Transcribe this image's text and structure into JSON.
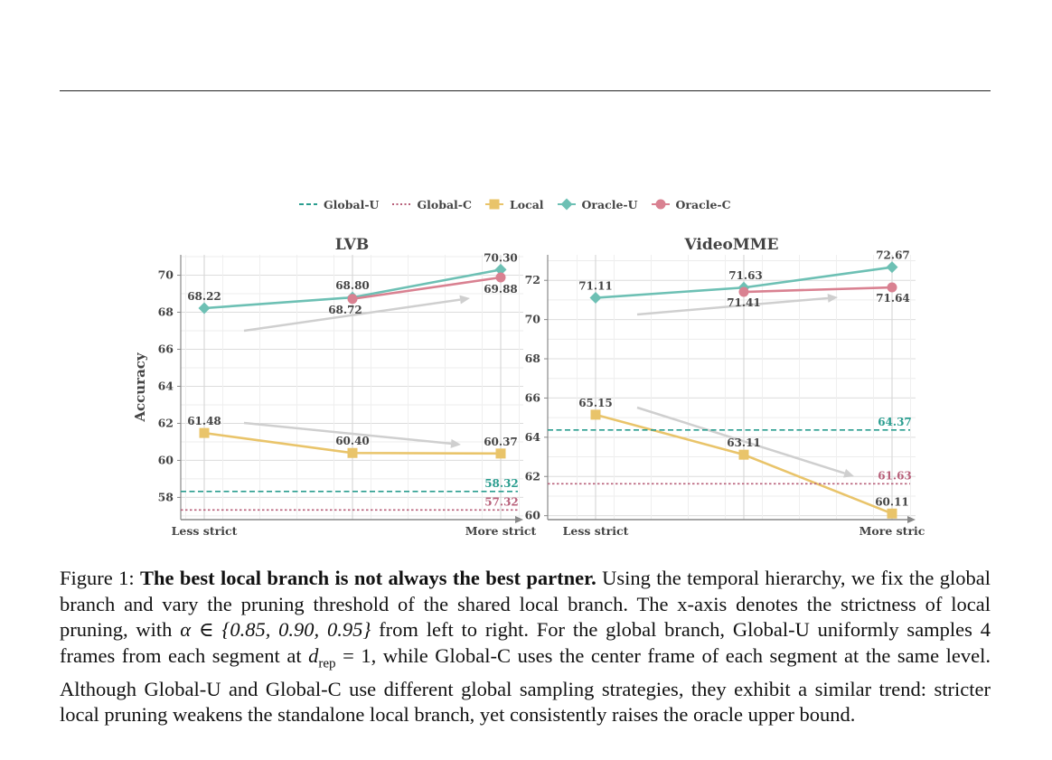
{
  "legend": [
    {
      "label": "Global-U",
      "color": "#2a9d8f",
      "style": "dashed",
      "marker": "none"
    },
    {
      "label": "Global-C",
      "color": "#b8607a",
      "style": "dotted",
      "marker": "none"
    },
    {
      "label": "Local",
      "color": "#e9c46a",
      "style": "solid",
      "marker": "square"
    },
    {
      "label": "Oracle-U",
      "color": "#6dc0b4",
      "style": "solid",
      "marker": "diamond"
    },
    {
      "label": "Oracle-C",
      "color": "#d98191",
      "style": "solid",
      "marker": "circle"
    }
  ],
  "chart_data": [
    {
      "type": "line",
      "title": "LVB",
      "ylabel": "Accuracy",
      "xlabel": "",
      "x_tick_labels": [
        "Less strict",
        "More strict"
      ],
      "y_ticks": [
        58,
        60,
        62,
        64,
        66,
        68,
        70
      ],
      "ylim": [
        56.8,
        71.1
      ],
      "grid": true,
      "series": [
        {
          "name": "Oracle-U",
          "values": [
            68.22,
            68.8,
            70.3
          ],
          "labels": [
            "68.22",
            "68.80",
            "70.30"
          ]
        },
        {
          "name": "Oracle-C",
          "values": [
            null,
            68.72,
            69.88
          ],
          "labels": [
            "",
            "68.72",
            "69.88"
          ]
        },
        {
          "name": "Local",
          "values": [
            61.48,
            60.4,
            60.37
          ],
          "labels": [
            "61.48",
            "60.40",
            "60.37"
          ]
        },
        {
          "name": "Global-U",
          "value": 58.32,
          "label": "58.32"
        },
        {
          "name": "Global-C",
          "value": 57.32,
          "label": "57.32"
        }
      ]
    },
    {
      "type": "line",
      "title": "VideoMME",
      "ylabel": "",
      "xlabel": "",
      "x_tick_labels": [
        "Less strict",
        "More stric"
      ],
      "y_ticks": [
        60,
        62,
        64,
        66,
        68,
        70,
        72
      ],
      "ylim": [
        59.8,
        73.3
      ],
      "grid": true,
      "series": [
        {
          "name": "Oracle-U",
          "values": [
            71.11,
            71.63,
            72.67
          ],
          "labels": [
            "71.11",
            "71.63",
            "72.67"
          ]
        },
        {
          "name": "Oracle-C",
          "values": [
            null,
            71.41,
            71.64
          ],
          "labels": [
            "",
            "71.41",
            "71.64"
          ]
        },
        {
          "name": "Local",
          "values": [
            65.15,
            63.11,
            60.11
          ],
          "labels": [
            "65.15",
            "63.11",
            "60.11"
          ]
        },
        {
          "name": "Global-U",
          "value": 64.37,
          "label": "64.37"
        },
        {
          "name": "Global-C",
          "value": 61.63,
          "label": "61.63"
        }
      ]
    }
  ],
  "caption": {
    "prefix": "Figure 1: ",
    "bold": "The best local branch is not always the best partner.",
    "text1": " Using the temporal hierarchy, we fix the global branch and vary the pruning threshold of the shared local branch. The x-axis denotes the strictness of local pruning, with ",
    "alpha": "α ∈ {0.85, 0.90, 0.95}",
    "text2": " from left to right. For the global branch, Global-U uniformly samples 4 frames from each segment at ",
    "drep": "d",
    "drep_sub": "rep",
    "drep_eq": " = 1",
    "text3": ", while Global-C uses the center frame of each segment at the same level. Although Global-U and Global-C use different global sampling strategies, they exhibit a similar trend: stricter local pruning weakens the standalone local branch, yet consistently raises the oracle upper bound."
  }
}
